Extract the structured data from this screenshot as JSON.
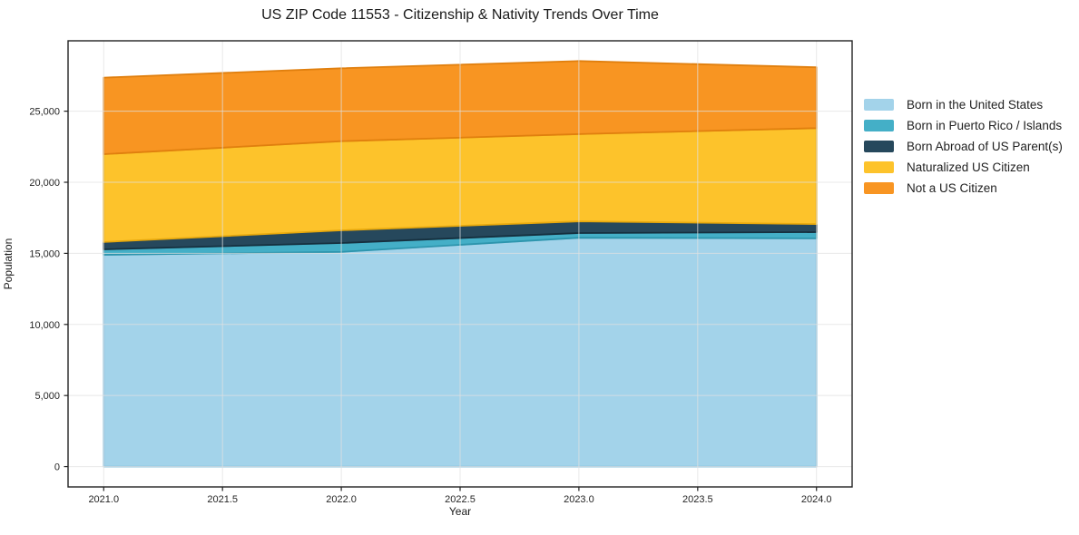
{
  "chart_data": {
    "type": "area",
    "stacked": true,
    "title": "US ZIP Code 11553 - Citizenship & Nativity Trends Over Time",
    "xlabel": "Year",
    "ylabel": "Population",
    "x": [
      2021,
      2022,
      2023,
      2024
    ],
    "series": [
      {
        "name": "Born in the United States",
        "color": "#a3d3ea",
        "edge": "#82bedd",
        "values": [
          14900,
          15100,
          16100,
          16050
        ]
      },
      {
        "name": "Born in Puerto Rico / Islands",
        "color": "#44afc7",
        "edge": "#2d95ad",
        "values": [
          380,
          630,
          330,
          440
        ]
      },
      {
        "name": "Born Abroad of US Parent(s)",
        "color": "#26485c",
        "edge": "#16303f",
        "values": [
          520,
          890,
          820,
          570
        ]
      },
      {
        "name": "Naturalized US Citizen",
        "color": "#fdc32b",
        "edge": "#e8a90d",
        "values": [
          6180,
          6270,
          6140,
          6750
        ]
      },
      {
        "name": "Not a US Citizen",
        "color": "#f89522",
        "edge": "#e07f0e",
        "values": [
          5380,
          5130,
          5140,
          4280
        ]
      }
    ],
    "totals": [
      27360,
      28020,
      28530,
      28090
    ],
    "xlim": [
      2020.85,
      2024.15
    ],
    "ylim": [
      -1430,
      29950
    ],
    "xticks": {
      "values": [
        2021.0,
        2021.5,
        2022.0,
        2022.5,
        2023.0,
        2023.5,
        2024.0
      ],
      "labels": [
        "2021.0",
        "2021.5",
        "2022.0",
        "2022.5",
        "2023.0",
        "2023.5",
        "2024.0"
      ]
    },
    "yticks": {
      "values": [
        0,
        5000,
        10000,
        15000,
        20000,
        25000
      ],
      "labels": [
        "0",
        "5,000",
        "10,000",
        "15,000",
        "20,000",
        "25,000"
      ]
    },
    "grid": true,
    "grid_color": "#e0e0e0",
    "frame_color": "#222222",
    "legend_position": "right-outside",
    "background": "#ffffff"
  }
}
